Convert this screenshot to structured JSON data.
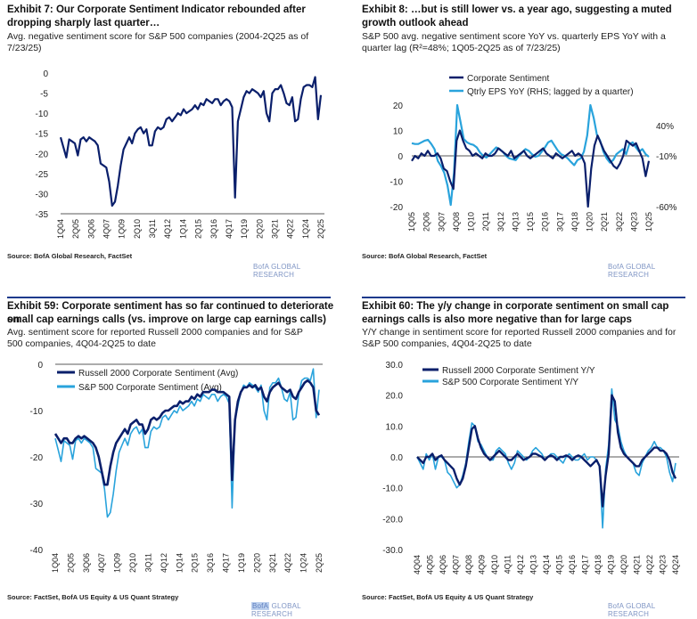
{
  "chart_data": [
    {
      "id": "ex7",
      "type": "line",
      "title": "Exhibit 7: Our Corporate Sentiment Indicator rebounded after dropping sharply last quarter…",
      "subtitle": "Avg. negative sentiment score for S&P 500 companies (2004-2Q25 as of 7/23/25)",
      "source": "Source: BofA Global Research, FactSet",
      "brand": "BofA GLOBAL RESEARCH",
      "ylim": [
        -35,
        0
      ],
      "yticks": [
        0,
        -5,
        -10,
        -15,
        -20,
        -25,
        -30,
        -35
      ],
      "xticks": [
        "1Q04",
        "2Q05",
        "3Q06",
        "4Q07",
        "1Q09",
        "2Q10",
        "3Q11",
        "4Q12",
        "1Q14",
        "2Q15",
        "3Q16",
        "4Q17",
        "1Q19",
        "2Q20",
        "3Q21",
        "4Q22",
        "1Q24",
        "2Q25"
      ],
      "grid": false,
      "series": [
        {
          "color": "#0a1f6b",
          "values": [
            -16,
            -18.5,
            -21,
            -16.5,
            -17,
            -17.5,
            -20.5,
            -16.5,
            -16,
            -17,
            -16,
            -16.5,
            -17,
            -18,
            -22.5,
            -23,
            -23.5,
            -27,
            -33,
            -32,
            -28,
            -23,
            -19,
            -17.5,
            -16,
            -17.5,
            -15,
            -14,
            -13.5,
            -15,
            -14,
            -18,
            -18,
            -14.5,
            -13.5,
            -14,
            -13.5,
            -11.5,
            -11,
            -12,
            -11,
            -10,
            -10.5,
            -9,
            -10,
            -9.5,
            -9,
            -8,
            -9,
            -7.5,
            -8,
            -6.5,
            -7,
            -7.5,
            -6.5,
            -6.5,
            -8,
            -7,
            -6.5,
            -7,
            -8.5,
            -31,
            -12,
            -9,
            -6,
            -4.5,
            -5,
            -4,
            -4.5,
            -5,
            -6,
            -4.5,
            -10,
            -12,
            -5,
            -4,
            -4,
            -3,
            -5,
            -7.5,
            -8,
            -6,
            -12,
            -11.5,
            -6.5,
            -3.5,
            -3,
            -3,
            -3.5,
            -1,
            -11.5,
            -5.5
          ]
        }
      ]
    },
    {
      "id": "ex8",
      "type": "line",
      "title": "Exhibit 8: …but is still lower vs. a year ago, suggesting a muted growth outlook ahead",
      "subtitle_line1": "S&P 500 avg. negative sentiment score YoY vs. quarterly EPS YoY with a",
      "subtitle_line2": "quarter lag (R²=48%; 1Q05-2Q25 as of 7/23/25)",
      "source": "Source: BofA Global Research, FactSet",
      "brand": "BofA GLOBAL RESEARCH",
      "ylim": [
        -20,
        20
      ],
      "yticks": [
        20,
        10,
        0,
        -10,
        -20
      ],
      "y2lim": [
        -60,
        60
      ],
      "y2ticks": [
        "40%",
        "-10%",
        "-60%"
      ],
      "xticks": [
        "1Q05",
        "2Q06",
        "3Q07",
        "4Q08",
        "1Q10",
        "2Q11",
        "3Q12",
        "4Q13",
        "1Q15",
        "2Q16",
        "3Q17",
        "4Q18",
        "1Q20",
        "2Q21",
        "3Q22",
        "4Q23",
        "1Q25"
      ],
      "legend": [
        "Corporate Sentiment",
        "Qtrly EPS YoY (RHS; lagged by a quarter)"
      ],
      "series": [
        {
          "name": "Corporate Sentiment",
          "color": "#0a1f6b",
          "axis": "left",
          "values": [
            -2,
            0,
            -1,
            1,
            0,
            2,
            0,
            0,
            1,
            -1,
            -5,
            -6,
            -10,
            -13,
            6,
            10,
            6,
            3,
            2,
            0,
            1,
            0,
            -1,
            1,
            0,
            0,
            1,
            3,
            2,
            1,
            0,
            2,
            -1,
            0,
            1,
            2,
            0,
            -1,
            0,
            1,
            2,
            3,
            1,
            0,
            -1,
            1,
            0,
            -1,
            0,
            1,
            2,
            0,
            1,
            0,
            -3,
            -21,
            -5,
            4,
            8,
            5,
            2,
            0,
            -2,
            -4,
            -5,
            -3,
            0,
            6,
            5,
            4,
            5,
            2,
            -1,
            -8,
            -2
          ]
        },
        {
          "name": "Qtrly EPS YoY (RHS; lagged by a quarter)",
          "color": "#29a3dc",
          "axis": "right",
          "values": [
            15,
            14,
            14,
            16,
            18,
            19,
            14,
            8,
            -6,
            -12,
            -20,
            -35,
            -58,
            -20,
            60,
            40,
            20,
            16,
            14,
            13,
            10,
            4,
            0,
            -2,
            2,
            6,
            10,
            8,
            5,
            0,
            -3,
            -4,
            -5,
            0,
            4,
            8,
            6,
            2,
            -1,
            0,
            5,
            10,
            16,
            18,
            12,
            6,
            2,
            0,
            -3,
            -7,
            -11,
            -5,
            -3,
            5,
            24,
            60,
            45,
            25,
            18,
            5,
            -3,
            -8,
            -5,
            2,
            5,
            8,
            2,
            14,
            16,
            10,
            5,
            8,
            2,
            -1
          ]
        }
      ]
    },
    {
      "id": "ex59",
      "type": "line",
      "title_line1": "Exhibit 59: Corporate sentiment has so far continued to deteriorate on",
      "title_line2": "small cap earnings calls (vs. improve on large cap earnings calls)",
      "subtitle_line1": "Avg. sentiment score for reported Russell 2000 companies and for S&P",
      "subtitle_line2": "500 companies, 4Q04-2Q25 to date",
      "source": "Source: FactSet, BofA US Equity & US Quant Strategy",
      "brand_hl": "BofA",
      "brand_rest": " GLOBAL RESEARCH",
      "ylim": [
        -40,
        0
      ],
      "yticks": [
        0,
        -10,
        -20,
        -30,
        -40
      ],
      "xticks": [
        "1Q04",
        "2Q05",
        "3Q06",
        "4Q07",
        "1Q09",
        "2Q10",
        "3Q11",
        "4Q12",
        "1Q14",
        "2Q15",
        "3Q16",
        "4Q17",
        "1Q19",
        "2Q20",
        "3Q21",
        "4Q22",
        "1Q24",
        "2Q25"
      ],
      "legend": [
        "Russell 2000 Corporate Sentiment (Avg)",
        "S&P 500 Corporate Sentiment (Avg)"
      ],
      "series": [
        {
          "name": "Russell 2000 Corporate Sentiment (Avg)",
          "color": "#0a1f6b",
          "values": [
            -15,
            -16,
            -17,
            -16,
            -16,
            -17,
            -17,
            -16,
            -15.5,
            -16,
            -15.5,
            -16,
            -16.5,
            -17,
            -18,
            -20,
            -23,
            -26,
            -26,
            -22,
            -19,
            -17,
            -16,
            -15,
            -14,
            -15,
            -13,
            -12.5,
            -12,
            -13,
            -13,
            -15,
            -14,
            -12,
            -11.5,
            -12,
            -11.5,
            -10.5,
            -10,
            -10,
            -9.5,
            -9,
            -9,
            -8,
            -8.5,
            -8,
            -8,
            -7,
            -7.5,
            -6.5,
            -7,
            -6,
            -6,
            -6,
            -5.5,
            -5.5,
            -6,
            -6,
            -6,
            -6.5,
            -7,
            -25,
            -12,
            -8,
            -6,
            -5,
            -5,
            -4.5,
            -5,
            -4.5,
            -5.5,
            -5,
            -7,
            -8,
            -6,
            -5,
            -4.5,
            -4,
            -5,
            -5.5,
            -6,
            -5.5,
            -7,
            -7.5,
            -6,
            -5,
            -4,
            -3.5,
            -4,
            -5,
            -10,
            -11
          ]
        },
        {
          "name": "S&P 500 Corporate Sentiment (Avg)",
          "color": "#29a3dc",
          "values": [
            -16,
            -18.5,
            -21,
            -16.5,
            -17,
            -17.5,
            -20.5,
            -16.5,
            -16,
            -17,
            -16,
            -16.5,
            -17,
            -18,
            -22.5,
            -23,
            -23.5,
            -27,
            -33,
            -32,
            -28,
            -23,
            -19,
            -17.5,
            -16,
            -17.5,
            -15,
            -14,
            -13.5,
            -15,
            -14,
            -18,
            -18,
            -14.5,
            -13.5,
            -14,
            -13.5,
            -11.5,
            -11,
            -12,
            -11,
            -10,
            -10.5,
            -9,
            -10,
            -9.5,
            -9,
            -8,
            -9,
            -7.5,
            -8,
            -6.5,
            -7,
            -7.5,
            -6.5,
            -6.5,
            -8,
            -7,
            -6.5,
            -7,
            -8.5,
            -31,
            -12,
            -9,
            -6,
            -4.5,
            -5,
            -4,
            -4.5,
            -5,
            -6,
            -4.5,
            -10,
            -12,
            -5,
            -4,
            -4,
            -3,
            -5,
            -7.5,
            -8,
            -6,
            -12,
            -11.5,
            -6.5,
            -3.5,
            -3,
            -3,
            -3.5,
            -1,
            -11.5,
            -5.5
          ]
        }
      ]
    },
    {
      "id": "ex60",
      "type": "line",
      "title_line1": "Exhibit 60: The y/y change in corporate sentiment on small cap",
      "title_line2": "earnings calls is also more negative than for large caps",
      "subtitle_line1": "Y/Y change in sentiment score for reported Russell 2000 companies and for",
      "subtitle_line2": "S&P 500 companies, 4Q04-2Q25 to date",
      "source": "Source: FactSet, BofA US Equity & US Quant Strategy",
      "brand": "BofA GLOBAL RESEARCH",
      "ylim": [
        -30,
        30
      ],
      "yticks": [
        "30.0",
        "20.0",
        "10.0",
        "0.0",
        "-10.0",
        "-20.0",
        "-30.0"
      ],
      "xticks": [
        "4Q04",
        "4Q05",
        "4Q06",
        "4Q07",
        "4Q08",
        "4Q09",
        "4Q10",
        "4Q11",
        "4Q12",
        "4Q13",
        "4Q14",
        "4Q15",
        "4Q16",
        "4Q17",
        "4Q18",
        "4Q19",
        "4Q20",
        "4Q21",
        "4Q22",
        "4Q23",
        "4Q24"
      ],
      "legend": [
        "Russell 2000 Corporate Sentiment Y/Y",
        "S&P 500 Corporate Sentiment Y/Y"
      ],
      "series": [
        {
          "name": "Russell 2000 Corporate Sentiment Y/Y",
          "color": "#0a1f6b",
          "values": [
            0,
            -1,
            -2,
            0,
            0,
            1,
            -1,
            0,
            0.5,
            -1,
            -2,
            -3,
            -4,
            -7,
            -9,
            -7,
            -3,
            3,
            9,
            10,
            6,
            3,
            1,
            0,
            -1,
            0,
            1,
            2,
            1,
            0,
            -1,
            -1,
            0,
            1,
            0,
            -1,
            -0.5,
            0,
            1,
            1,
            0.5,
            0,
            -1,
            0,
            0.5,
            0,
            -1,
            0,
            0,
            0.5,
            0,
            -1,
            0,
            0.5,
            0,
            -1,
            -2,
            -3,
            -2,
            -1,
            -3,
            -16,
            -6,
            1,
            20,
            18,
            8,
            3,
            1,
            0,
            -1,
            -2,
            -3,
            -3,
            -1,
            0,
            1,
            2,
            3,
            3,
            2,
            2,
            1,
            -1,
            -5,
            -7
          ]
        },
        {
          "name": "S&P 500 Corporate Sentiment Y/Y",
          "color": "#29a3dc",
          "values": [
            0,
            -2,
            -4,
            1,
            -1,
            1,
            -4,
            0,
            0,
            -1,
            -5,
            -6,
            -8,
            -10,
            -9,
            -6,
            -2,
            5,
            11,
            10,
            5,
            4,
            2,
            0,
            -1,
            -1,
            2,
            3,
            2,
            1,
            -2,
            -4,
            -2,
            2,
            1,
            0,
            -1,
            0,
            2,
            3,
            2,
            1,
            -1,
            0,
            1,
            1,
            0,
            -1,
            -2,
            0,
            1,
            0,
            -1,
            -1,
            0,
            1,
            -1,
            0,
            0,
            -1,
            -3,
            -23,
            -4,
            4,
            22,
            12,
            10,
            5,
            2,
            0,
            -1,
            -2,
            -5,
            -6,
            -2,
            0,
            2,
            3,
            5,
            3,
            3,
            2,
            0,
            -5,
            -8,
            -2
          ]
        }
      ]
    }
  ]
}
